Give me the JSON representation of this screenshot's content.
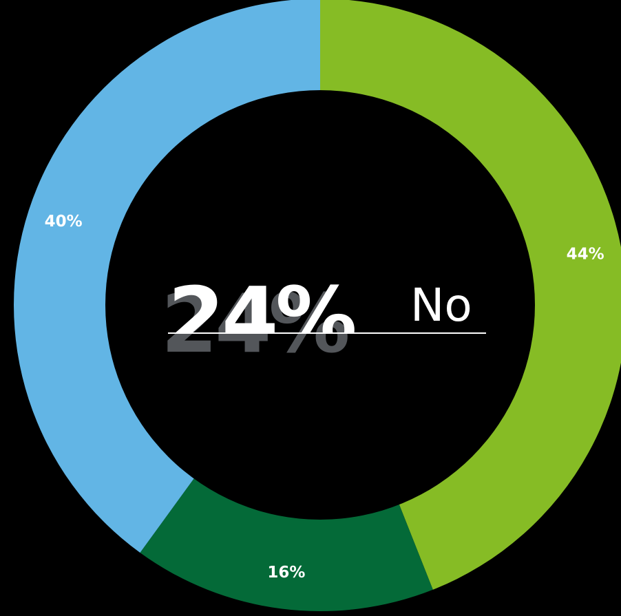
{
  "chart_data": {
    "type": "pie",
    "slices": [
      {
        "label": "44%",
        "value": 44,
        "color": "#86bc25"
      },
      {
        "label": "16%",
        "value": 16,
        "color": "#046a38"
      },
      {
        "label": "40%",
        "value": 40,
        "color": "#62b5e5"
      }
    ],
    "center": {
      "value": "24%",
      "caption": "No"
    },
    "style": {
      "background": "#000000",
      "hole": "#000000",
      "label_color": "#ffffff",
      "center_value_color": "#ffffff",
      "center_value_shadow": "#53565a",
      "rule_color": "#ffffff"
    }
  }
}
